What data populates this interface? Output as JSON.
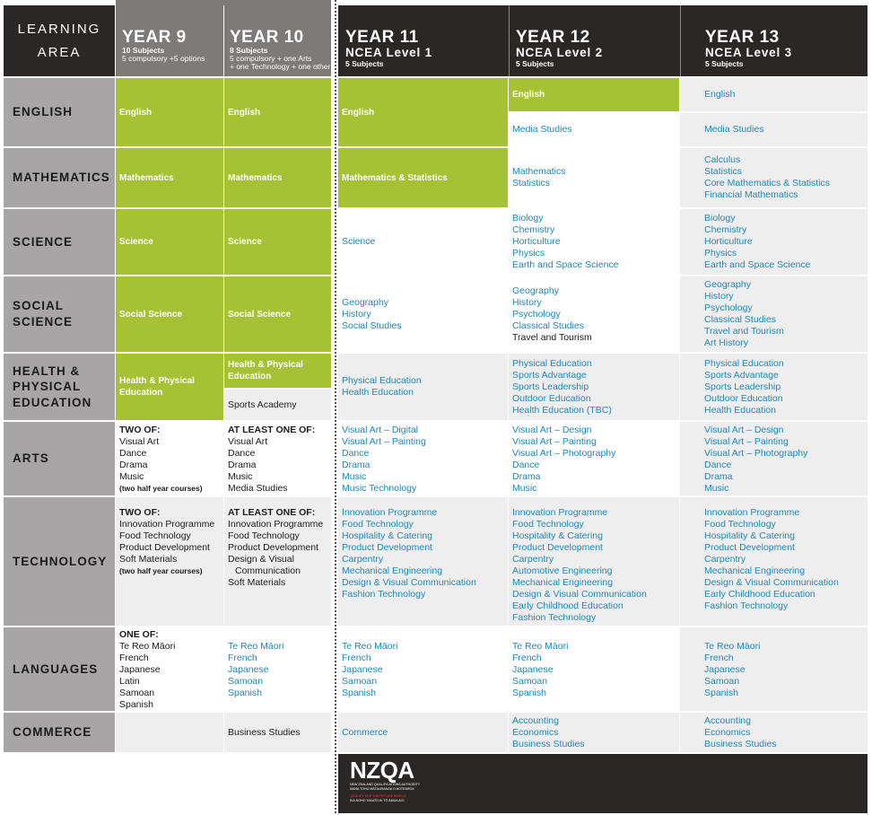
{
  "header": {
    "learning_area": "LEARNING AREA",
    "year9": {
      "title": "YEAR 9",
      "subjects": "10 Subjects",
      "note": "5 compulsory +5 options"
    },
    "year10": {
      "title": "YEAR 10",
      "subjects": "8 Subjects",
      "note1": "5 compulsory + one Arts",
      "note2": "+ one Technology + one other"
    },
    "year11": {
      "title": "YEAR 11",
      "level": "NCEA Level 1",
      "subjects": "5 Subjects"
    },
    "year12": {
      "title": "YEAR 12",
      "level": "NCEA Level 2",
      "subjects": "5 Subjects"
    },
    "year13": {
      "title": "YEAR 13",
      "level": "NCEA Level 3",
      "subjects": "5 Subjects"
    }
  },
  "areas": {
    "english": "ENGLISH",
    "mathematics": "MATHEMATICS",
    "science": "SCIENCE",
    "social1": "SOCIAL",
    "social2": "SCIENCE",
    "health1": "HEALTH &",
    "health2": "PHYSICAL",
    "health3": "EDUCATION",
    "arts": "ARTS",
    "technology": "TECHNOLOGY",
    "languages": "LANGUAGES",
    "commerce": "COMMERCE"
  },
  "english": {
    "y9": "English",
    "y10": "English",
    "y11": "English",
    "y12": [
      "English",
      "Media Studies"
    ],
    "y13": [
      "English",
      "Media Studies"
    ]
  },
  "mathematics": {
    "y9": "Mathematics",
    "y10": "Mathematics",
    "y11": "Mathematics & Statistics",
    "y12": [
      "Mathematics",
      "Statistics"
    ],
    "y13": [
      "Calculus",
      "Statistics",
      "Core Mathematics & Statistics",
      "Financial Mathematics"
    ]
  },
  "science": {
    "y9": "Science",
    "y10": "Science",
    "y11": "Science",
    "y12": [
      "Biology",
      "Chemistry",
      "Horticulture",
      "Physics",
      "Earth and Space Science"
    ],
    "y13": [
      "Biology",
      "Chemistry",
      "Horticulture",
      "Physics",
      "Earth and Space Science"
    ]
  },
  "social": {
    "y9": "Social Science",
    "y10": "Social Science",
    "y11": [
      "Geography",
      "History",
      "Social Studies"
    ],
    "y12": [
      "Geography",
      "History",
      "Psychology",
      "Classical Studies"
    ],
    "y12_plain": "Travel and Tourism",
    "y13": [
      "Geography",
      "History",
      "Psychology",
      "Classical Studies",
      "Travel and Tourism",
      "Art History"
    ]
  },
  "health": {
    "y9": [
      "Health & Physical",
      "Education"
    ],
    "y10": [
      "Health & Physical",
      "Education"
    ],
    "y10_extra": "Sports Academy",
    "y11": [
      "Physical Education",
      "Health Education"
    ],
    "y12": [
      "Physical Education",
      "Sports Advantage",
      "Sports Leadership",
      "Outdoor Education",
      "Health Education (TBC)"
    ],
    "y13": [
      "Physical Education",
      "Sports Advantage",
      "Sports Leadership",
      "Outdoor Education",
      "Health Education"
    ]
  },
  "arts": {
    "y9_head": "TWO OF:",
    "y9": [
      "Visual Art",
      "Dance",
      "Drama",
      "Music"
    ],
    "y9_note": "(two half year courses)",
    "y10_head": "AT LEAST ONE OF:",
    "y10": [
      "Visual Art",
      "Dance",
      "Drama",
      "Music",
      "Media Studies"
    ],
    "y11": [
      "Visual Art – Digital",
      "Visual Art – Painting",
      "Dance",
      "Drama",
      "Music",
      "Music Technology"
    ],
    "y12": [
      "Visual Art – Design",
      "Visual Art – Painting",
      "Visual Art – Photography",
      "Dance",
      "Drama",
      "Music"
    ],
    "y13": [
      "Visual Art – Design",
      "Visual Art – Painting",
      "Visual Art – Photography",
      "Dance",
      "Drama",
      "Music"
    ]
  },
  "technology": {
    "y9_head": "TWO OF:",
    "y9": [
      "Innovation Programme",
      "Food Technology",
      "Product Development",
      "Soft Materials"
    ],
    "y9_note": "(two half year courses)",
    "y10_head": "AT LEAST ONE OF:",
    "y10": [
      "Innovation Programme",
      "Food Technology",
      "Product Development",
      "Design & Visual",
      "Communication",
      "Soft Materials"
    ],
    "y11": [
      "Innovation Programme",
      "Food Technology",
      "Hospitality & Catering",
      "Product Development",
      "Carpentry",
      "Mechanical Engineering",
      "Design & Visual Communication",
      "Fashion Technology"
    ],
    "y12": [
      "Innovation Programme",
      "Food Technology",
      "Hospitality & Catering",
      "Product Development",
      "Carpentry",
      "Automotive Engineering",
      "Mechanical Engineering",
      "Design & Visual Communication",
      "Early Childhood Education",
      "Fashion Technology"
    ],
    "y13": [
      "Innovation Programme",
      "Food Technology",
      "Hospitality & Catering",
      "Product Development",
      "Carpentry",
      "Mechanical Engineering",
      "Design & Visual Communication",
      "Early Childhood Education",
      "Fashion Technology"
    ]
  },
  "languages": {
    "y9_head": "ONE OF:",
    "y9": [
      "Te Reo Māori",
      "French",
      "Japanese",
      "Latin",
      "Samoan",
      "Spanish"
    ],
    "y10": [
      "Te Reo Māori",
      "French",
      "Japanese",
      "Samoan",
      "Spanish"
    ],
    "y11": [
      "Te Reo Māori",
      "French",
      "Japanese",
      "Samoan",
      "Spanish"
    ],
    "y12": [
      "Te Reo Māori",
      "French",
      "Japanese",
      "Samoan",
      "Spanish"
    ],
    "y13": [
      "Te Reo Māori",
      "French",
      "Japanese",
      "Samoan",
      "Spanish"
    ]
  },
  "commerce": {
    "y10": "Business Studies",
    "y11": "Commerce",
    "y12": [
      "Accounting",
      "Economics",
      "Business Studies"
    ],
    "y13": [
      "Accounting",
      "Economics",
      "Business Studies"
    ]
  },
  "footer": {
    "logo": "NZQA",
    "line1": "NEW ZEALAND QUALIFICATIONS AUTHORITY",
    "line2": "MANA TOHU MĀTAURANGA O AOTEAROA",
    "line3": "QUALIFY FOR THE FUTURE WORLD",
    "line4": "KIA NOHO TAKATŪ KI TŌ ĀMUA AO!"
  },
  "colors": {
    "green": "#a4c233",
    "blue": "#1f88b8",
    "dark": "#2b2727",
    "grey": "#a7a5a5",
    "red": "#d2232a"
  }
}
